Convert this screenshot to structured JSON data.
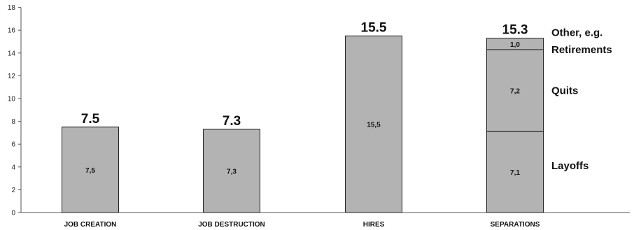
{
  "chart_data": {
    "type": "bar",
    "stacked": true,
    "categories": [
      "JOB CREATION",
      "JOB DESTRUCTION",
      "HIRES",
      "SEPARATIONS"
    ],
    "ylim": [
      0,
      18
    ],
    "yticks": [
      "0",
      "2",
      "4",
      "6",
      "8",
      "10",
      "12",
      "14",
      "16",
      "18"
    ],
    "grid": false,
    "bar_color": "#b3b3b3",
    "bars": [
      {
        "category": "JOB CREATION",
        "total": 7.5,
        "total_label": "7.5",
        "segments": [
          {
            "value": 7.5,
            "label": "7,5"
          }
        ]
      },
      {
        "category": "JOB DESTRUCTION",
        "total": 7.3,
        "total_label": "7.3",
        "segments": [
          {
            "value": 7.3,
            "label": "7,3"
          }
        ]
      },
      {
        "category": "HIRES",
        "total": 15.5,
        "total_label": "15.5",
        "segments": [
          {
            "value": 15.5,
            "label": "15,5"
          }
        ]
      },
      {
        "category": "SEPARATIONS",
        "total": 15.3,
        "total_label": "15.3",
        "segments": [
          {
            "value": 7.1,
            "label": "7,1",
            "name": "Layoffs"
          },
          {
            "value": 7.2,
            "label": "7,2",
            "name": "Quits"
          },
          {
            "value": 1.0,
            "label": "1,0",
            "name": "Other, e.g. Retirements"
          }
        ]
      }
    ],
    "annotations": [
      {
        "text": "Other, e.g.",
        "at_value": 15.8
      },
      {
        "text": "Retirements",
        "at_value": 14.3
      },
      {
        "text": "Quits",
        "at_value": 10.7
      },
      {
        "text": "Layoffs",
        "at_value": 4.1
      }
    ]
  }
}
